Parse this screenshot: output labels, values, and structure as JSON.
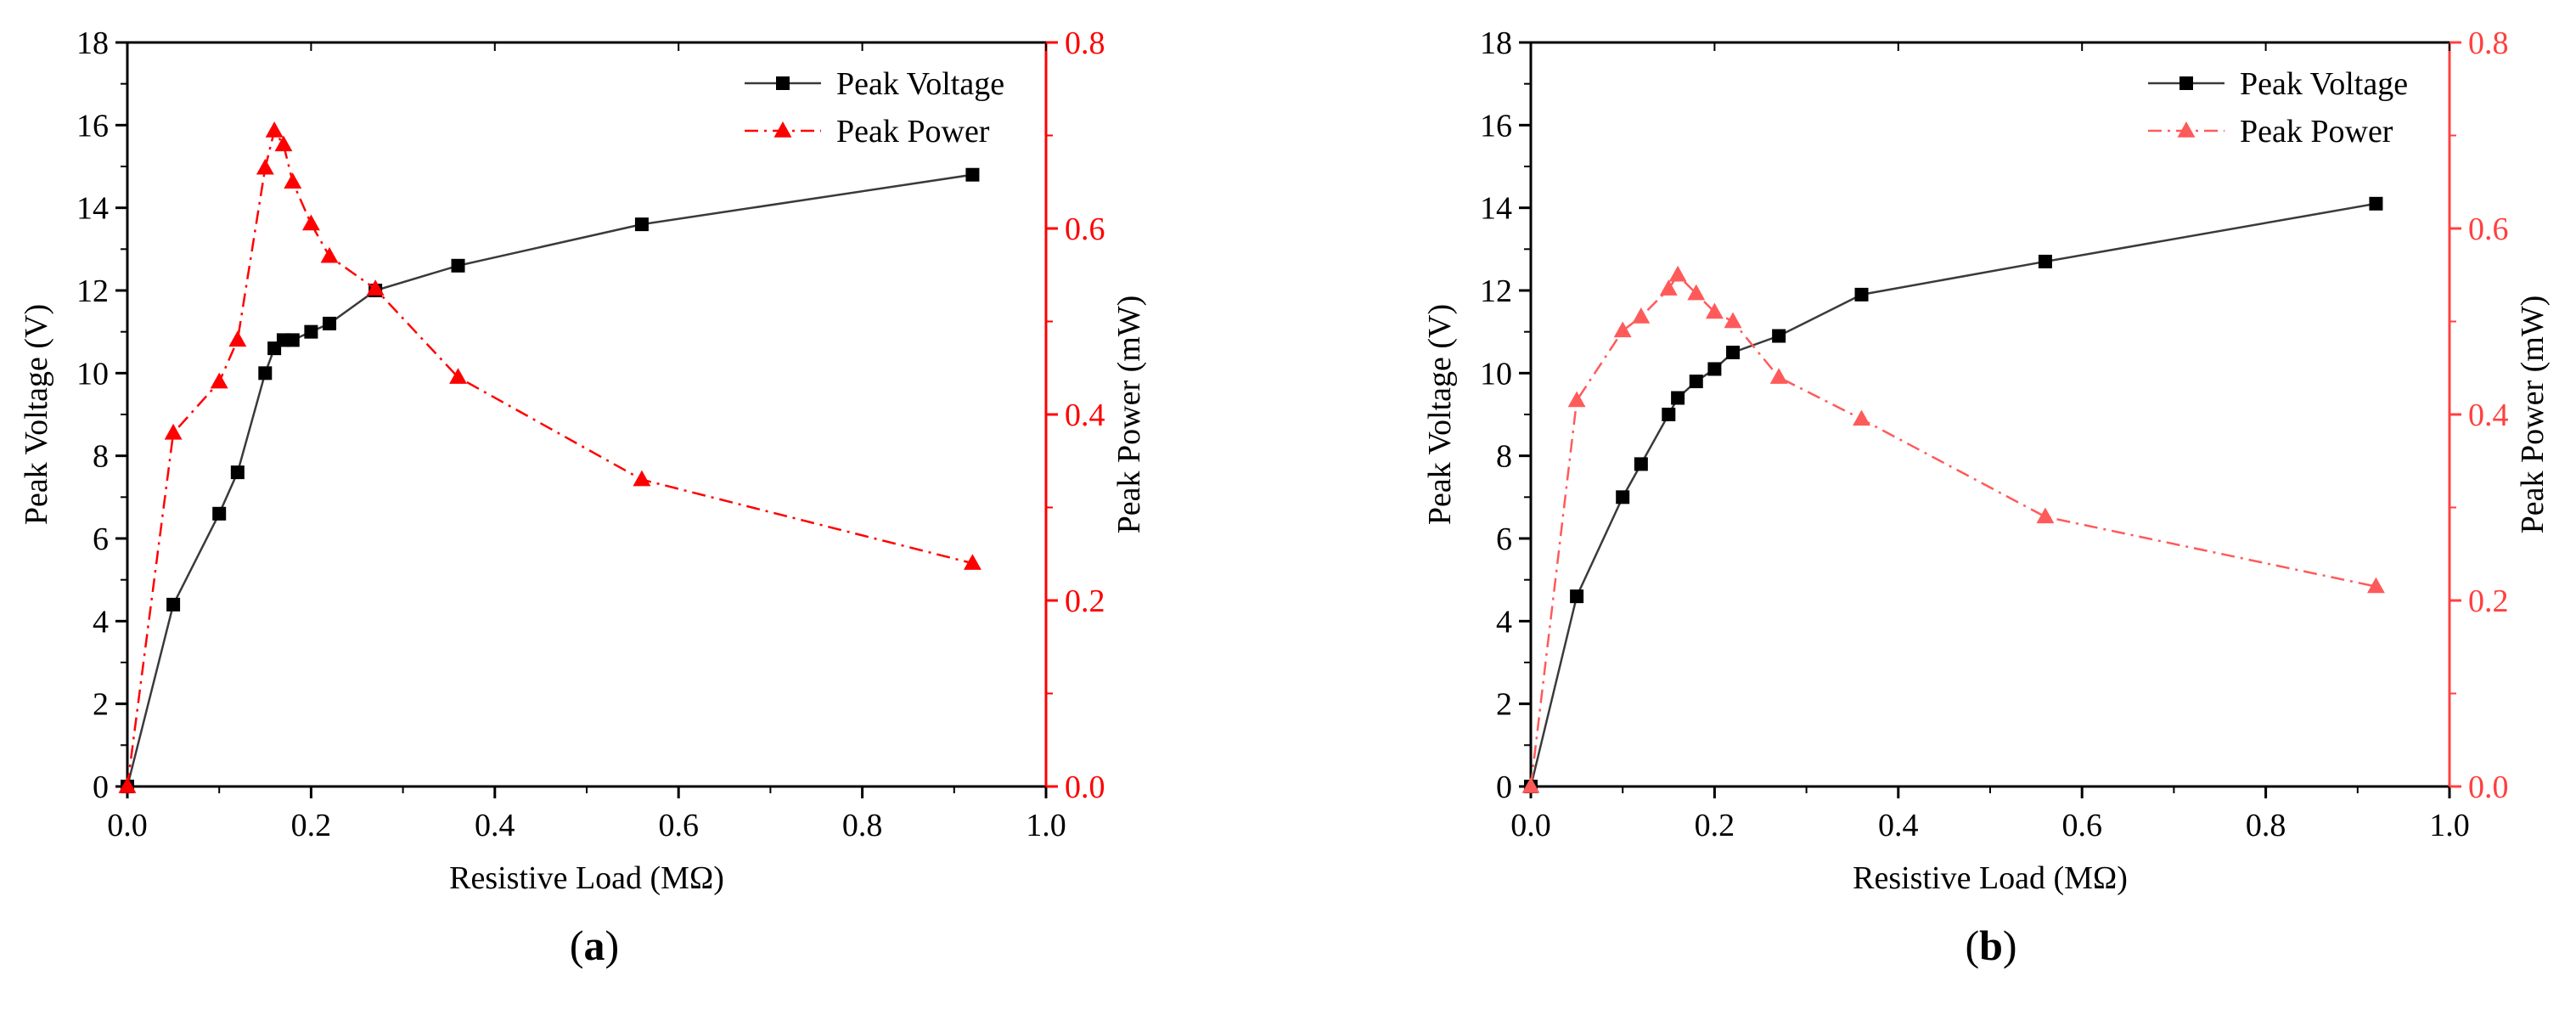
{
  "chart_data": [
    {
      "type": "line",
      "panel_label": "a",
      "xlabel": "Resistive Load (MΩ)",
      "ylabel": "Peak Voltage (V)",
      "y2label": "Peak Power (mW)",
      "xlim": [
        0.0,
        1.0
      ],
      "ylim": [
        0,
        18
      ],
      "y2lim": [
        0.0,
        0.8
      ],
      "xticks": [
        "0.0",
        "0.2",
        "0.4",
        "0.6",
        "0.8",
        "1.0"
      ],
      "yticks": [
        "0",
        "2",
        "4",
        "6",
        "8",
        "10",
        "12",
        "14",
        "16",
        "18"
      ],
      "y2ticks": [
        "0.0",
        "0.2",
        "0.4",
        "0.6",
        "0.8"
      ],
      "grid": false,
      "legend_position": "top-right",
      "series": [
        {
          "name": "Peak Voltage",
          "axis": "left",
          "color": "#3a3a3a",
          "marker": "square",
          "marker_color": "#000000",
          "line_style": "solid",
          "x": [
            0.0,
            0.05,
            0.1,
            0.12,
            0.15,
            0.16,
            0.17,
            0.18,
            0.2,
            0.22,
            0.27,
            0.36,
            0.56,
            0.92
          ],
          "values": [
            0.0,
            4.4,
            6.6,
            7.6,
            10.0,
            10.6,
            10.8,
            10.8,
            11.0,
            11.2,
            12.0,
            12.6,
            13.6,
            14.8
          ]
        },
        {
          "name": "Peak Power",
          "axis": "right",
          "color": "#ff0000",
          "marker": "triangle",
          "marker_color": "#ff0000",
          "line_style": "dash-dot",
          "x": [
            0.0,
            0.05,
            0.1,
            0.12,
            0.15,
            0.16,
            0.17,
            0.18,
            0.2,
            0.22,
            0.27,
            0.36,
            0.56,
            0.92
          ],
          "values": [
            0.0,
            0.38,
            0.435,
            0.48,
            0.665,
            0.705,
            0.69,
            0.65,
            0.605,
            0.57,
            0.535,
            0.44,
            0.33,
            0.24
          ]
        }
      ]
    },
    {
      "type": "line",
      "panel_label": "b",
      "xlabel": "Resistive Load (MΩ)",
      "ylabel": "Peak Voltage (V)",
      "y2label": "Peak Power (mW)",
      "xlim": [
        0.0,
        1.0
      ],
      "ylim": [
        0,
        18
      ],
      "y2lim": [
        0.0,
        0.8
      ],
      "xticks": [
        "0.0",
        "0.2",
        "0.4",
        "0.6",
        "0.8",
        "1.0"
      ],
      "yticks": [
        "0",
        "2",
        "4",
        "6",
        "8",
        "10",
        "12",
        "14",
        "16",
        "18"
      ],
      "y2ticks": [
        "0.0",
        "0.2",
        "0.4",
        "0.6",
        "0.8"
      ],
      "grid": false,
      "legend_position": "top-right",
      "series": [
        {
          "name": "Peak Voltage",
          "axis": "left",
          "color": "#3a3a3a",
          "marker": "square",
          "marker_color": "#000000",
          "line_style": "solid",
          "x": [
            0.0,
            0.05,
            0.1,
            0.12,
            0.15,
            0.16,
            0.18,
            0.2,
            0.22,
            0.27,
            0.36,
            0.56,
            0.92
          ],
          "values": [
            0.0,
            4.6,
            7.0,
            7.8,
            9.0,
            9.4,
            9.8,
            10.1,
            10.5,
            10.9,
            11.9,
            12.7,
            14.1
          ]
        },
        {
          "name": "Peak Power",
          "axis": "right",
          "color": "#ff5a5a",
          "marker": "triangle",
          "marker_color": "#ff5a5a",
          "line_style": "dash-dot",
          "x": [
            0.0,
            0.05,
            0.1,
            0.12,
            0.15,
            0.16,
            0.18,
            0.2,
            0.22,
            0.27,
            0.36,
            0.56,
            0.92
          ],
          "values": [
            0.0,
            0.415,
            0.49,
            0.505,
            0.535,
            0.55,
            0.53,
            0.51,
            0.5,
            0.44,
            0.395,
            0.29,
            0.215
          ]
        }
      ]
    }
  ]
}
